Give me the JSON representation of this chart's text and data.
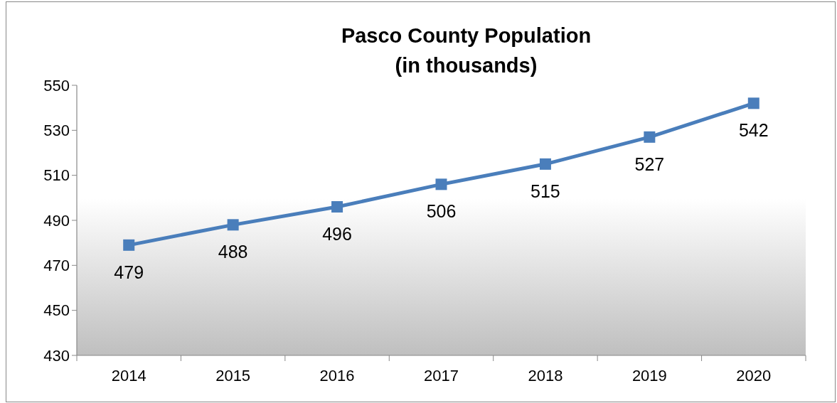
{
  "chart_data": {
    "type": "line",
    "title": "Pasco County Population",
    "subtitle": "(in thousands)",
    "categories": [
      "2014",
      "2015",
      "2016",
      "2017",
      "2018",
      "2019",
      "2020"
    ],
    "series": [
      {
        "color": "#4a7ebb",
        "values": [
          479,
          488,
          496,
          506,
          515,
          527,
          542
        ]
      }
    ],
    "ylim": [
      430,
      550
    ],
    "yticks": [
      430,
      450,
      470,
      490,
      510,
      530,
      550
    ],
    "marker": "square",
    "line_style": "solid",
    "data_labels": true,
    "grid": false
  }
}
